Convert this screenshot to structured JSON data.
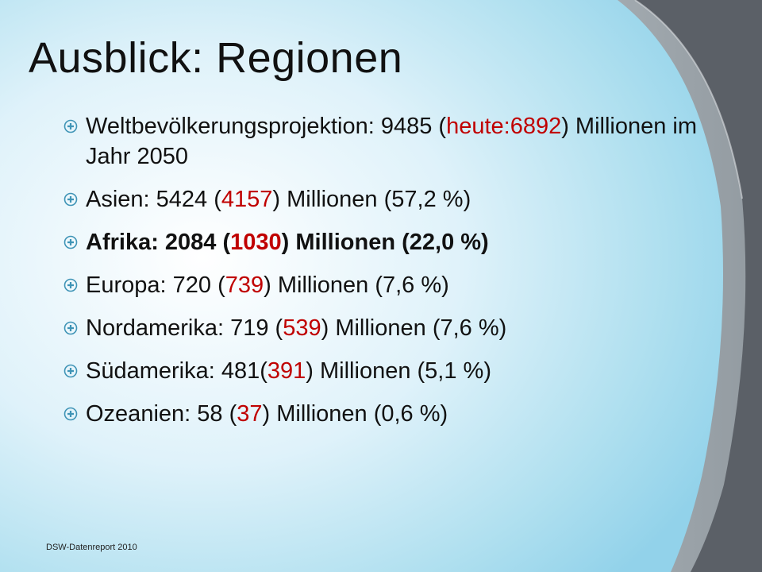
{
  "slide": {
    "title": "Ausblick: Regionen",
    "bullets": [
      {
        "pre": "Weltbevölkerungsprojektion: 9485 (",
        "highlight": "heute:6892",
        "post": ") Millionen im Jahr 2050",
        "bold": false
      },
      {
        "pre": "Asien: 5424 (",
        "highlight": "4157",
        "post": ") Millionen (57,2 %)",
        "bold": false
      },
      {
        "pre": "Afrika: 2084 (",
        "highlight": "1030",
        "post": ") Millionen (22,0 %)",
        "bold": true
      },
      {
        "pre": "Europa: 720 (",
        "highlight": "739",
        "post": ") Millionen (7,6 %)",
        "bold": false
      },
      {
        "pre": "Nordamerika: 719 (",
        "highlight": "539",
        "post": ") Millionen (7,6 %)",
        "bold": false
      },
      {
        "pre": "Südamerika: 481(",
        "highlight": "391",
        "post": ") Millionen (5,1 %)",
        "bold": false
      },
      {
        "pre": "Ozeanien: 58 (",
        "highlight": "37",
        "post": ") Millionen (0,6 %)",
        "bold": false
      }
    ],
    "footer": "DSW-Datenreport 2010"
  },
  "colors": {
    "highlight": "#c00000",
    "marker": "#3f94b6",
    "text": "#111111"
  },
  "icons": {
    "bullet": "circled-cross-bullet-icon"
  }
}
